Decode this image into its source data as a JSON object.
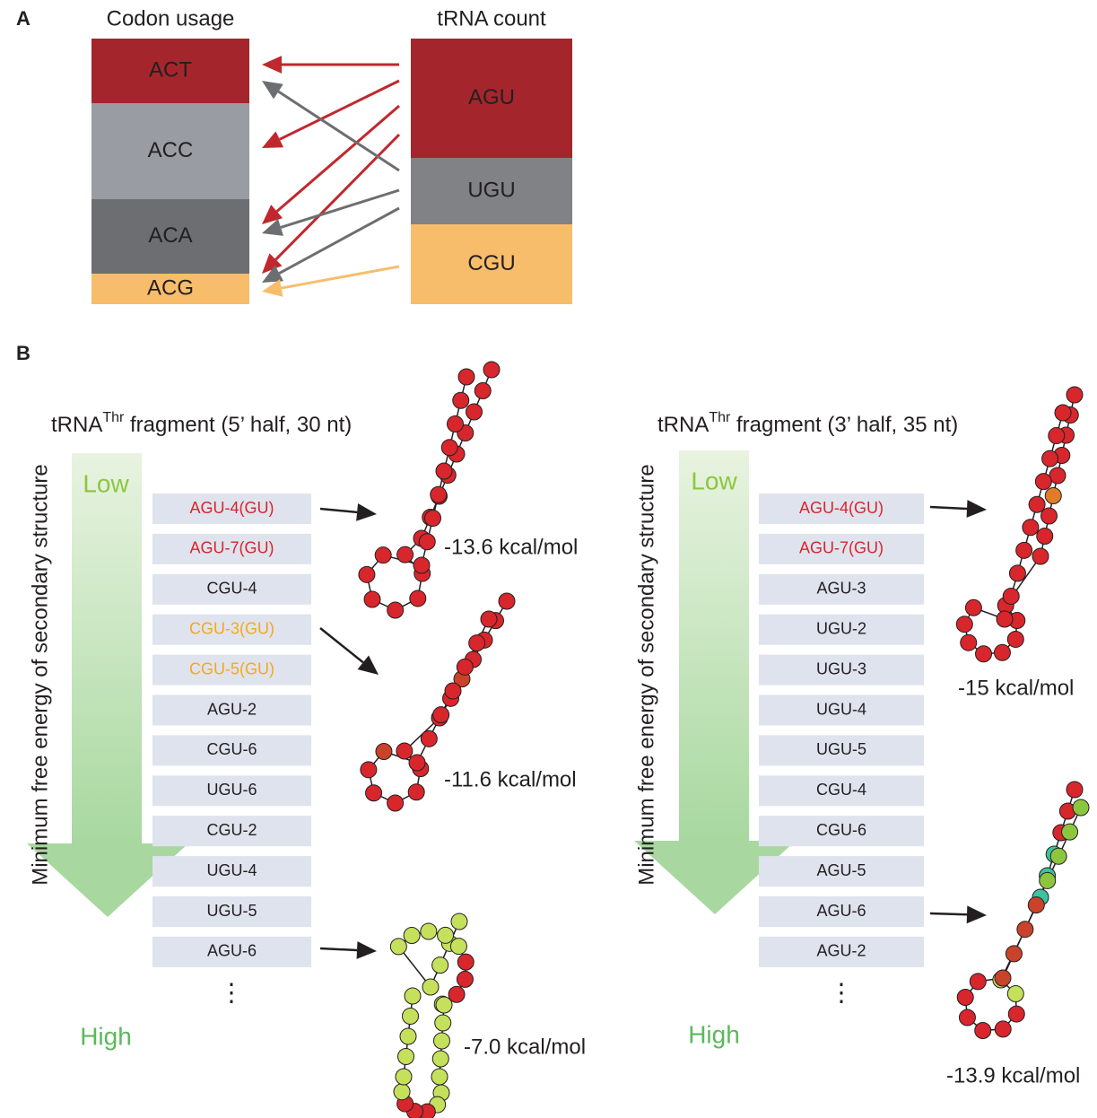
{
  "panel_a": {
    "label": "A",
    "codon_title": "Codon usage",
    "trna_title": "tRNA count",
    "codons": [
      "ACT",
      "ACC",
      "ACA",
      "ACG"
    ],
    "trnas": [
      "AGU",
      "UGU",
      "CGU"
    ]
  },
  "panel_b": {
    "label": "B",
    "axis_label": "Minimum free energy of secondary structure",
    "low": "Low",
    "high": "High",
    "ellipsis": "⋮",
    "left": {
      "title_pre": "tRNA",
      "title_sup": "Thr",
      "title_post": " fragment (5’ half, 30 nt)",
      "items": [
        {
          "text": "AGU-4(GU)",
          "color": "#d7262c"
        },
        {
          "text": "AGU-7(GU)",
          "color": "#d7262c"
        },
        {
          "text": "CGU-4",
          "color": "#231f20"
        },
        {
          "text": "CGU-3(GU)",
          "color": "#f4a81d"
        },
        {
          "text": "CGU-5(GU)",
          "color": "#f4a81d"
        },
        {
          "text": "AGU-2",
          "color": "#231f20"
        },
        {
          "text": "CGU-6",
          "color": "#231f20"
        },
        {
          "text": "UGU-6",
          "color": "#231f20"
        },
        {
          "text": "CGU-2",
          "color": "#231f20"
        },
        {
          "text": "UGU-4",
          "color": "#231f20"
        },
        {
          "text": "UGU-5",
          "color": "#231f20"
        },
        {
          "text": "AGU-6",
          "color": "#231f20"
        }
      ],
      "energies": [
        "-13.6 kcal/mol",
        "-11.6 kcal/mol",
        "-7.0 kcal/mol"
      ]
    },
    "right": {
      "title_pre": "tRNA",
      "title_sup": "Thr",
      "title_post": " fragment (3’ half, 35 nt)",
      "items": [
        {
          "text": "AGU-4(GU)",
          "color": "#d7262c"
        },
        {
          "text": "AGU-7(GU)",
          "color": "#d7262c"
        },
        {
          "text": "AGU-3",
          "color": "#231f20"
        },
        {
          "text": "UGU-2",
          "color": "#231f20"
        },
        {
          "text": "UGU-3",
          "color": "#231f20"
        },
        {
          "text": "UGU-4",
          "color": "#231f20"
        },
        {
          "text": "UGU-5",
          "color": "#231f20"
        },
        {
          "text": "CGU-4",
          "color": "#231f20"
        },
        {
          "text": "CGU-6",
          "color": "#231f20"
        },
        {
          "text": "AGU-5",
          "color": "#231f20"
        },
        {
          "text": "AGU-6",
          "color": "#231f20"
        },
        {
          "text": "AGU-2",
          "color": "#231f20"
        }
      ],
      "energies": [
        "-15 kcal/mol",
        "-13.9 kcal/mol"
      ]
    }
  }
}
